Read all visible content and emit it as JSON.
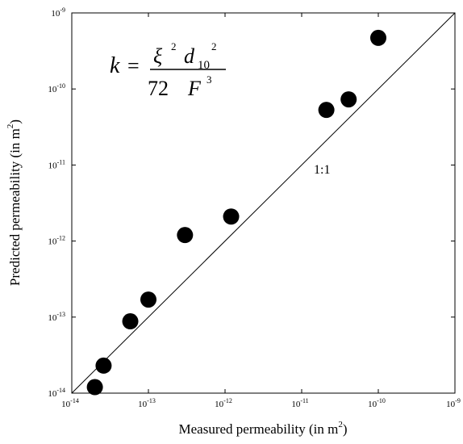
{
  "chart_data": {
    "type": "scatter",
    "xlabel_main": "Measured permeability (in m",
    "xlabel_sup": "2",
    "xlabel_end": ")",
    "ylabel_main": "Predicted permeability (in m",
    "ylabel_sup": "2",
    "ylabel_end": ")",
    "x_scale": "log",
    "y_scale": "log",
    "xlim": [
      1e-14,
      1e-09
    ],
    "ylim": [
      1e-14,
      1e-09
    ],
    "x_ticks": [
      {
        "base": "10",
        "exp": "-14",
        "value": 1e-14
      },
      {
        "base": "10",
        "exp": "-13",
        "value": 1e-13
      },
      {
        "base": "10",
        "exp": "-12",
        "value": 1e-12
      },
      {
        "base": "10",
        "exp": "-11",
        "value": 1e-11
      },
      {
        "base": "10",
        "exp": "-10",
        "value": 1e-10
      },
      {
        "base": "10",
        "exp": "-9",
        "value": 1e-09
      }
    ],
    "y_ticks": [
      {
        "base": "10",
        "exp": "-14",
        "value": 1e-14
      },
      {
        "base": "10",
        "exp": "-13",
        "value": 1e-13
      },
      {
        "base": "10",
        "exp": "-12",
        "value": 1e-12
      },
      {
        "base": "10",
        "exp": "-11",
        "value": 1e-11
      },
      {
        "base": "10",
        "exp": "-10",
        "value": 1e-10
      },
      {
        "base": "10",
        "exp": "-9",
        "value": 1e-09
      }
    ],
    "points": [
      {
        "x": 2e-14,
        "y": 1.2e-14
      },
      {
        "x": 2.6e-14,
        "y": 2.3e-14
      },
      {
        "x": 5.8e-14,
        "y": 8.8e-14
      },
      {
        "x": 1e-13,
        "y": 1.7e-13
      },
      {
        "x": 3e-13,
        "y": 1.2e-12
      },
      {
        "x": 1.2e-12,
        "y": 2.1e-12
      },
      {
        "x": 2.1e-11,
        "y": 5.3e-11
      },
      {
        "x": 4.1e-11,
        "y": 7.3e-11
      },
      {
        "x": 1e-10,
        "y": 4.7e-10
      }
    ],
    "reference_line": {
      "label": "1:1",
      "from": [
        1e-14,
        1e-14
      ],
      "to": [
        1e-09,
        1e-09
      ]
    },
    "marker_color": "#000000",
    "grid": false,
    "legend": "none"
  },
  "formula": {
    "lhs": "k",
    "eq": "=",
    "num_xi": "ξ",
    "num_xi_exp": "2",
    "num_d": "d",
    "num_d_sub": "10",
    "num_d_exp": "2",
    "den_const": "72",
    "den_f": "F",
    "den_f_exp": "3"
  }
}
